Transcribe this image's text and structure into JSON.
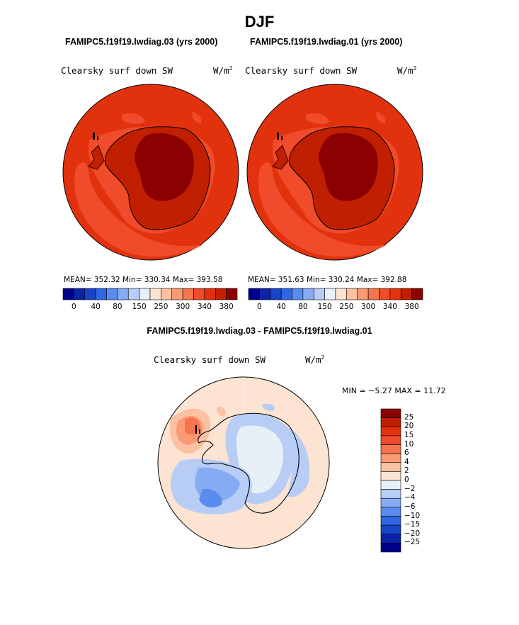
{
  "title": "DJF",
  "panels": [
    {
      "run_title": "FAMIPC5.f19f19.lwdiag.03 (yrs 2000)",
      "field": "Clearsky surf down SW",
      "units": "W/m",
      "units_exp": "2",
      "stats": "MEAN= 352.32   Min= 330.34   Max= 393.58"
    },
    {
      "run_title": "FAMIPC5.f19f19.lwdiag.01 (yrs 2000)",
      "field": "Clearsky surf down SW",
      "units": "W/m",
      "units_exp": "2",
      "stats": "MEAN= 351.63   Min= 330.24   Max= 392.88"
    }
  ],
  "top_colorbar": {
    "colors": [
      "#00008b",
      "#0a23a8",
      "#1845c8",
      "#2f66e6",
      "#5a8cf0",
      "#87abf3",
      "#b7cdf6",
      "#e7eff7",
      "#fde3d2",
      "#fbc1a2",
      "#f99a74",
      "#f6744e",
      "#f04b2a",
      "#e1320d",
      "#c11f02",
      "#8b0000"
    ],
    "ticks": [
      "0",
      "40",
      "80",
      "150",
      "250",
      "300",
      "340",
      "380"
    ]
  },
  "diff_panel": {
    "title": "FAMIPC5.f19f19.lwdiag.03 - FAMIPC5.f19f19.lwdiag.01",
    "field": "Clearsky surf down SW",
    "units": "W/m",
    "units_exp": "2",
    "minmax": "MIN =  −5.27 MAX =  11.72"
  },
  "diff_colorbar": {
    "colors": [
      "#8b0000",
      "#c11f02",
      "#e1320d",
      "#f04b2a",
      "#f6744e",
      "#f99a74",
      "#fbc1a2",
      "#fde3d2",
      "#e7eff7",
      "#b7cdf6",
      "#87abf3",
      "#5a8cf0",
      "#2f66e6",
      "#1845c8",
      "#0a23a8",
      "#00008b"
    ],
    "ticks": [
      "25",
      "20",
      "15",
      "10",
      "6",
      "4",
      "2",
      "0",
      "−2",
      "−4",
      "−6",
      "−10",
      "−15",
      "−20",
      "−25"
    ]
  }
}
